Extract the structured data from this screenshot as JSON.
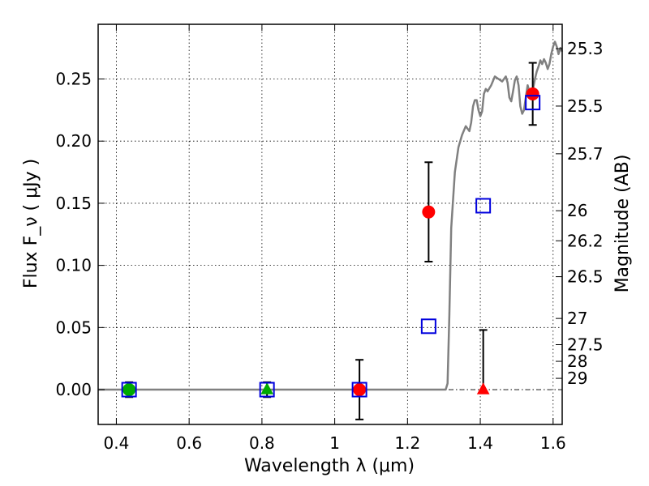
{
  "chart_data": {
    "type": "scatter",
    "xlabel": "Wavelength  λ (μm)",
    "ylabel": "Flux  F_ν  ( μJy )",
    "ylabel_right": "Magnitude (AB)",
    "xlim": [
      0.35,
      1.625
    ],
    "ylim": [
      -0.028,
      0.294
    ],
    "grid": true,
    "x_ticks": [
      0.4,
      0.6,
      0.8,
      1.0,
      1.2,
      1.4,
      1.6
    ],
    "x_tick_labels": [
      "0.4",
      "0.6",
      "0.8",
      "1",
      "1.2",
      "1.4",
      "1.6"
    ],
    "y_ticks": [
      0.0,
      0.05,
      0.1,
      0.15,
      0.2,
      0.25
    ],
    "y_tick_labels": [
      "0.00",
      "0.05",
      "0.10",
      "0.15",
      "0.20",
      "0.25"
    ],
    "right_axis_ticks": [
      {
        "label": "25.3",
        "flux": 0.2744
      },
      {
        "label": "25.5",
        "flux": 0.2282
      },
      {
        "label": "25.7",
        "flux": 0.1898
      },
      {
        "label": "26",
        "flux": 0.144
      },
      {
        "label": "26.2",
        "flux": 0.1198
      },
      {
        "label": "26.5",
        "flux": 0.0909
      },
      {
        "label": "27",
        "flux": 0.0573
      },
      {
        "label": "27.5",
        "flux": 0.0362
      },
      {
        "label": "28",
        "flux": 0.0228
      },
      {
        "label": "29",
        "flux": 0.0091
      }
    ],
    "series": [
      {
        "marker": "circle",
        "color": "#ff0000",
        "points": [
          {
            "x": 1.068,
            "y": 0.0,
            "err": 0.024
          },
          {
            "x": 1.258,
            "y": 0.143,
            "err": 0.04
          },
          {
            "x": 1.544,
            "y": 0.238,
            "err": 0.025
          }
        ]
      },
      {
        "marker": "circle",
        "color": "#00aa00",
        "points": [
          {
            "x": 0.435,
            "y": 0.0,
            "err": 0.006
          }
        ]
      },
      {
        "marker": "triangle",
        "color": "#00aa00",
        "points": [
          {
            "x": 0.814,
            "y": 0.0,
            "err": 0.006
          }
        ]
      },
      {
        "marker": "triangle",
        "color": "#ff0000",
        "points": [
          {
            "x": 1.408,
            "y": 0.0,
            "err_up": 0.048
          }
        ]
      },
      {
        "marker": "open-square",
        "color": "#0000dd",
        "points": [
          {
            "x": 0.435,
            "y": 0.0
          },
          {
            "x": 0.814,
            "y": 0.0
          },
          {
            "x": 1.068,
            "y": 0.0
          },
          {
            "x": 1.258,
            "y": 0.051
          },
          {
            "x": 1.408,
            "y": 0.148
          },
          {
            "x": 1.544,
            "y": 0.231
          }
        ]
      }
    ],
    "model_spectrum": {
      "color": "#808080",
      "x": [
        0.35,
        1.305,
        1.31,
        1.315,
        1.32,
        1.33,
        1.34,
        1.35,
        1.36,
        1.37,
        1.375,
        1.38,
        1.385,
        1.39,
        1.395,
        1.4,
        1.405,
        1.41,
        1.415,
        1.42,
        1.43,
        1.44,
        1.45,
        1.46,
        1.47,
        1.475,
        1.48,
        1.485,
        1.49,
        1.495,
        1.5,
        1.505,
        1.51,
        1.515,
        1.52,
        1.525,
        1.53,
        1.535,
        1.54,
        1.545,
        1.55,
        1.555,
        1.56,
        1.565,
        1.57,
        1.575,
        1.58,
        1.585,
        1.59,
        1.595,
        1.6,
        1.605,
        1.61,
        1.615,
        1.62,
        1.625
      ],
      "y": [
        0.0,
        0.0,
        0.005,
        0.06,
        0.13,
        0.175,
        0.195,
        0.205,
        0.212,
        0.208,
        0.215,
        0.228,
        0.233,
        0.233,
        0.225,
        0.22,
        0.224,
        0.238,
        0.242,
        0.24,
        0.245,
        0.252,
        0.25,
        0.248,
        0.252,
        0.247,
        0.235,
        0.232,
        0.24,
        0.249,
        0.252,
        0.245,
        0.228,
        0.222,
        0.225,
        0.235,
        0.245,
        0.24,
        0.235,
        0.242,
        0.25,
        0.256,
        0.26,
        0.265,
        0.262,
        0.266,
        0.263,
        0.258,
        0.262,
        0.27,
        0.276,
        0.28,
        0.276,
        0.27,
        0.275,
        0.272
      ]
    },
    "reference_line": {
      "y": 0.0,
      "style": "dash-dot",
      "color": "#000000"
    }
  }
}
